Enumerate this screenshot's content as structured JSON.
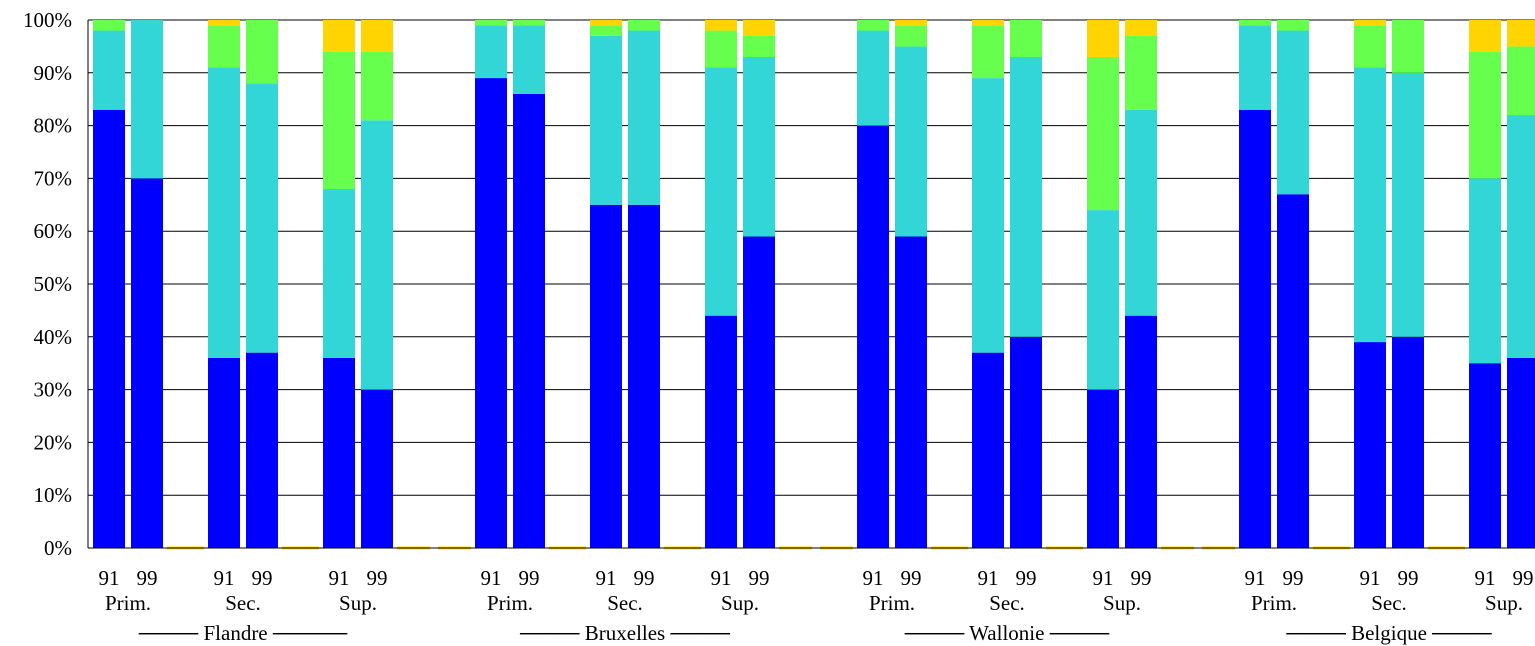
{
  "chart_data": {
    "type": "bar",
    "stacked": true,
    "orientation": "vertical",
    "ylim": [
      0,
      100
    ],
    "yticks": [
      "0%",
      "10%",
      "20%",
      "30%",
      "40%",
      "50%",
      "60%",
      "70%",
      "80%",
      "90%",
      "100%"
    ],
    "grid": "horizontal",
    "legend": "none",
    "colors": [
      "#0000ff",
      "#33d6d6",
      "#66ff4d",
      "#ffd400"
    ],
    "separator_color": "#ffd400",
    "regions": [
      {
        "label": "──── Flandre ─────",
        "groups": [
          {
            "label": "Prim.",
            "bars": [
              {
                "year": "91",
                "values": [
                  83,
                  15,
                  2,
                  0
                ]
              },
              {
                "year": "99",
                "values": [
                  70,
                  30,
                  0,
                  0
                ]
              }
            ]
          },
          {
            "label": "Sec.",
            "bars": [
              {
                "year": "91",
                "values": [
                  36,
                  55,
                  8,
                  1
                ]
              },
              {
                "year": "99",
                "values": [
                  37,
                  51,
                  12,
                  0
                ]
              }
            ]
          },
          {
            "label": "Sup.",
            "bars": [
              {
                "year": "91",
                "values": [
                  36,
                  32,
                  26,
                  6
                ]
              },
              {
                "year": "99",
                "values": [
                  30,
                  51,
                  13,
                  6
                ]
              }
            ]
          }
        ]
      },
      {
        "label": "──── Bruxelles ────",
        "groups": [
          {
            "label": "Prim.",
            "bars": [
              {
                "year": "91",
                "values": [
                  89,
                  10,
                  1,
                  0
                ]
              },
              {
                "year": "99",
                "values": [
                  86,
                  13,
                  1,
                  0
                ]
              }
            ]
          },
          {
            "label": "Sec.",
            "bars": [
              {
                "year": "91",
                "values": [
                  65,
                  32,
                  2,
                  1
                ]
              },
              {
                "year": "99",
                "values": [
                  65,
                  33,
                  2,
                  0
                ]
              }
            ]
          },
          {
            "label": "Sup.",
            "bars": [
              {
                "year": "91",
                "values": [
                  44,
                  47,
                  7,
                  2
                ]
              },
              {
                "year": "99",
                "values": [
                  59,
                  34,
                  4,
                  3
                ]
              }
            ]
          }
        ]
      },
      {
        "label": "──── Wallonie ────",
        "groups": [
          {
            "label": "Prim.",
            "bars": [
              {
                "year": "91",
                "values": [
                  80,
                  18,
                  2,
                  0
                ]
              },
              {
                "year": "99",
                "values": [
                  59,
                  36,
                  4,
                  1
                ]
              }
            ]
          },
          {
            "label": "Sec.",
            "bars": [
              {
                "year": "91",
                "values": [
                  37,
                  52,
                  10,
                  1
                ]
              },
              {
                "year": "99",
                "values": [
                  40,
                  53,
                  7,
                  0
                ]
              }
            ]
          },
          {
            "label": "Sup.",
            "bars": [
              {
                "year": "91",
                "values": [
                  30,
                  34,
                  29,
                  7
                ]
              },
              {
                "year": "99",
                "values": [
                  44,
                  39,
                  14,
                  3
                ]
              }
            ]
          }
        ]
      },
      {
        "label": "──── Belgique ────",
        "groups": [
          {
            "label": "Prim.",
            "bars": [
              {
                "year": "91",
                "values": [
                  83,
                  16,
                  1,
                  0
                ]
              },
              {
                "year": "99",
                "values": [
                  67,
                  31,
                  2,
                  0
                ]
              }
            ]
          },
          {
            "label": "Sec.",
            "bars": [
              {
                "year": "91",
                "values": [
                  39,
                  52,
                  8,
                  1
                ]
              },
              {
                "year": "99",
                "values": [
                  40,
                  50,
                  10,
                  0
                ]
              }
            ]
          },
          {
            "label": "Sup.",
            "bars": [
              {
                "year": "91",
                "values": [
                  35,
                  35,
                  24,
                  6
                ]
              },
              {
                "year": "99",
                "values": [
                  36,
                  46,
                  13,
                  5
                ]
              }
            ]
          }
        ]
      }
    ]
  }
}
